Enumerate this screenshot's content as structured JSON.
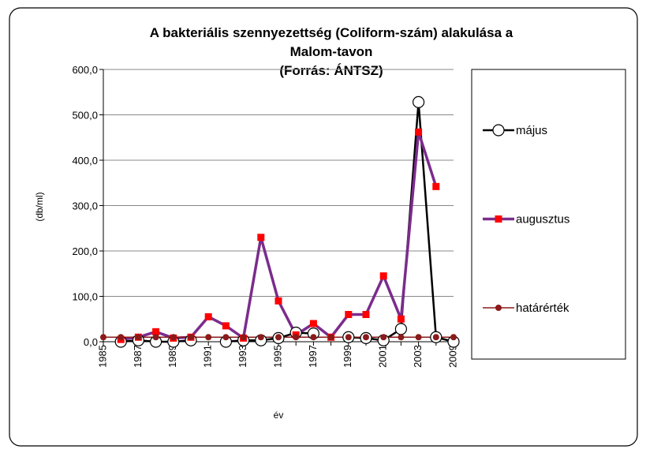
{
  "chart_data": {
    "type": "line",
    "title": [
      "A bakteriális szennyezettség (Coliform-szám) alakulása a",
      "Malom-tavon",
      "(Forrás: ÁNTSZ)"
    ],
    "y_label": "(db/ml)",
    "x_label": "év",
    "categories": [
      "1985",
      null,
      "1987",
      null,
      "1989",
      null,
      "1991",
      null,
      "1993",
      null,
      "1995",
      null,
      "1997",
      null,
      "1999",
      null,
      "2001",
      null,
      "2003",
      null,
      "2009"
    ],
    "series": [
      {
        "name": "május",
        "color": "#000000",
        "marker": "circle",
        "marker_color": "#ffffff",
        "values": [
          null,
          0,
          3,
          0,
          0,
          3,
          null,
          0,
          3,
          3,
          8,
          20,
          18,
          null,
          10,
          8,
          3,
          28,
          528,
          10,
          0
        ]
      },
      {
        "name": "augusztus",
        "color": "#7b2c8c",
        "marker": "square",
        "marker_color": "#ff0000",
        "values": [
          null,
          5,
          10,
          22,
          8,
          10,
          55,
          35,
          8,
          230,
          90,
          15,
          40,
          10,
          60,
          60,
          145,
          50,
          462,
          342,
          null
        ]
      },
      {
        "name": "határérték",
        "color": "#8b1a1a",
        "marker": "dot",
        "marker_color": "#8b1a1a",
        "values": [
          10,
          10,
          10,
          10,
          10,
          10,
          10,
          10,
          10,
          10,
          10,
          10,
          10,
          10,
          10,
          10,
          10,
          10,
          10,
          10,
          10
        ]
      }
    ],
    "ylim": [
      0,
      600
    ],
    "yticks": [
      {
        "value": 0,
        "label": "0,0"
      },
      {
        "value": 100,
        "label": "100,0"
      },
      {
        "value": 200,
        "label": "200,0"
      },
      {
        "value": 300,
        "label": "300,0"
      },
      {
        "value": 400,
        "label": "400,0"
      },
      {
        "value": 500,
        "label": "500,0"
      },
      {
        "value": 600,
        "label": "600,0"
      }
    ],
    "grid": true,
    "legend": "right"
  }
}
